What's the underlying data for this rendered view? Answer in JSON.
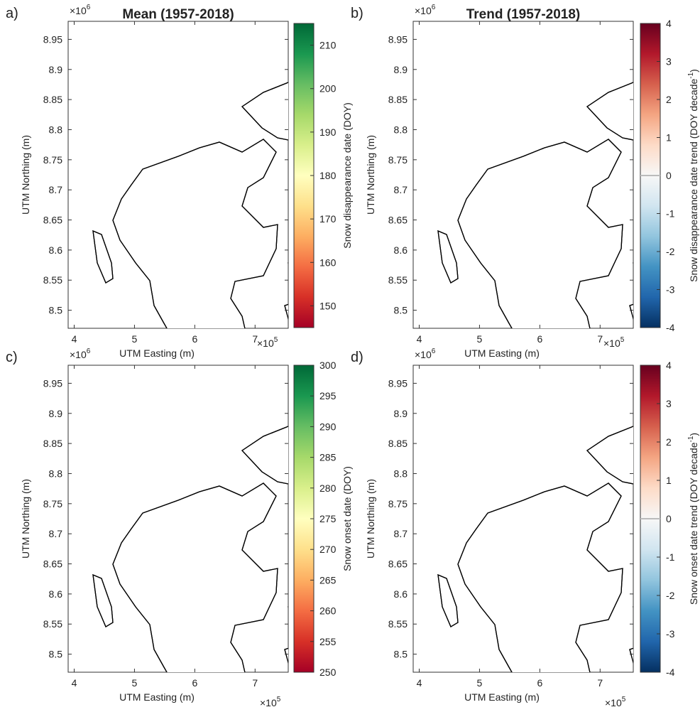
{
  "panels": [
    {
      "id": "a",
      "letter": "a)",
      "title": "Mean (1957-2018)",
      "ylabel": "UTM Northing (m)",
      "xlabel": "UTM Easting (m)",
      "show_x_mult": false,
      "y_mult": "×10",
      "y_mult_exp": "6",
      "x_mult": "×10",
      "x_mult_exp": "5",
      "cb_label": "Snow disappearance date (DOY)",
      "cb_ticks": [
        "210",
        "200",
        "190",
        "180",
        "170",
        "160",
        "150"
      ],
      "cb_colormap": "red-yellow-green",
      "cb_range": [
        145,
        215
      ]
    },
    {
      "id": "b",
      "letter": "b)",
      "title": "Trend (1957-2018)",
      "ylabel": "UTM Northing (m)",
      "xlabel": "UTM Easting (m)",
      "show_x_mult": false,
      "y_mult": "×10",
      "y_mult_exp": "6",
      "x_mult": "×10",
      "x_mult_exp": "5",
      "cb_label": "Snow disappearance date trend (DOY decade",
      "cb_label_sup": "-1",
      "cb_label_end": ")",
      "cb_ticks": [
        "4",
        "3",
        "2",
        "1",
        "0",
        "-1",
        "-2",
        "-3",
        "-4"
      ],
      "cb_colormap": "blue-white-red",
      "cb_range": [
        -4,
        4
      ]
    },
    {
      "id": "c",
      "letter": "c)",
      "title": "",
      "ylabel": "UTM Northing (m)",
      "xlabel": "UTM Easting (m)",
      "show_x_mult": true,
      "y_mult": "×10",
      "y_mult_exp": "6",
      "x_mult": "×10",
      "x_mult_exp": "5",
      "cb_label": "Snow onset date (DOY)",
      "cb_ticks": [
        "300",
        "295",
        "290",
        "285",
        "280",
        "275",
        "270",
        "265",
        "260",
        "255",
        "250"
      ],
      "cb_colormap": "red-yellow-green",
      "cb_range": [
        250,
        300
      ]
    },
    {
      "id": "d",
      "letter": "d)",
      "title": "",
      "ylabel": "UTM Northing (m)",
      "xlabel": "UTM Easting (m)",
      "show_x_mult": true,
      "y_mult": "×10",
      "y_mult_exp": "6",
      "x_mult": "×10",
      "x_mult_exp": "5",
      "cb_label": "Snow onset date trend (DOY decade",
      "cb_label_sup": "-1",
      "cb_label_end": ")",
      "cb_ticks": [
        "4",
        "3",
        "2",
        "1",
        "0",
        "-1",
        "-2",
        "-3",
        "-4"
      ],
      "cb_colormap": "blue-white-red",
      "cb_range": [
        -4,
        4
      ]
    }
  ],
  "top_x_mult": {
    "left": "×10",
    "left_exp": "5",
    "right": "×10",
    "right_exp": "5"
  },
  "axes": {
    "x_ticks": [
      "4",
      "5",
      "6",
      "7"
    ],
    "y_ticks": [
      "8.95",
      "8.9",
      "8.85",
      "8.8",
      "8.75",
      "8.7",
      "8.65",
      "8.6",
      "8.55",
      "8.5"
    ],
    "xlim": [
      3.9,
      7.55
    ],
    "ylim": [
      8.47,
      8.98
    ]
  },
  "colors": {
    "land_outline": "#000000",
    "gray_fill": "#cdcdcd",
    "ryg": [
      "#a50026",
      "#d73027",
      "#f46d43",
      "#fdae61",
      "#fee08b",
      "#ffffbf",
      "#d9ef8b",
      "#a6d96a",
      "#66bd63",
      "#1a9850",
      "#006837"
    ],
    "bwr": [
      "#053061",
      "#2166ac",
      "#4393c3",
      "#92c5de",
      "#d1e5f0",
      "#f7f7f7",
      "#fddbc7",
      "#f4a582",
      "#d6604d",
      "#b2182b",
      "#67001f"
    ]
  }
}
